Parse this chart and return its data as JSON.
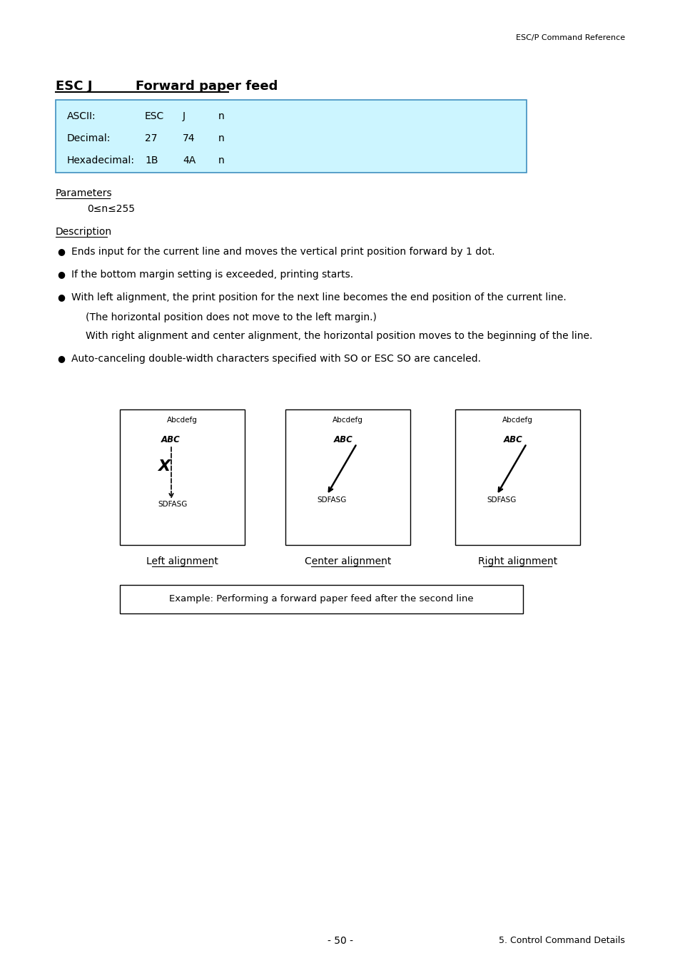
{
  "page_header": "ESC/P Command Reference",
  "title_left": "ESC J",
  "title_right": "Forward paper feed",
  "table_bg": "#ccf5ff",
  "table_border": "#4090c0",
  "table_rows": [
    [
      "ASCII:",
      "ESC",
      "J",
      "n"
    ],
    [
      "Decimal:",
      "27",
      "74",
      "n"
    ],
    [
      "Hexadecimal:",
      "1B",
      "4A",
      "n"
    ]
  ],
  "params_label": "Parameters",
  "params_value": "0≤n≤255",
  "desc_label": "Description",
  "bullet0": "Ends input for the current line and moves the vertical print position forward by 1 dot.",
  "bullet1": "If the bottom margin setting is exceeded, printing starts.",
  "bullet2": "With left alignment, the print position for the next line becomes the end position of the current line.",
  "bullet2a": "(The horizontal position does not move to the left margin.)",
  "bullet2b": "With right alignment and center alignment, the horizontal position moves to the beginning of the line.",
  "bullet3": "Auto-canceling double-width characters specified with SO or ESC SO are canceled.",
  "diag_labels": [
    "Left alignment",
    "Center alignment",
    "Right alignment"
  ],
  "example_box": "Example: Performing a forward paper feed after the second line",
  "page_footer_left": "- 50 -",
  "page_footer_right": "5. Control Command Details"
}
